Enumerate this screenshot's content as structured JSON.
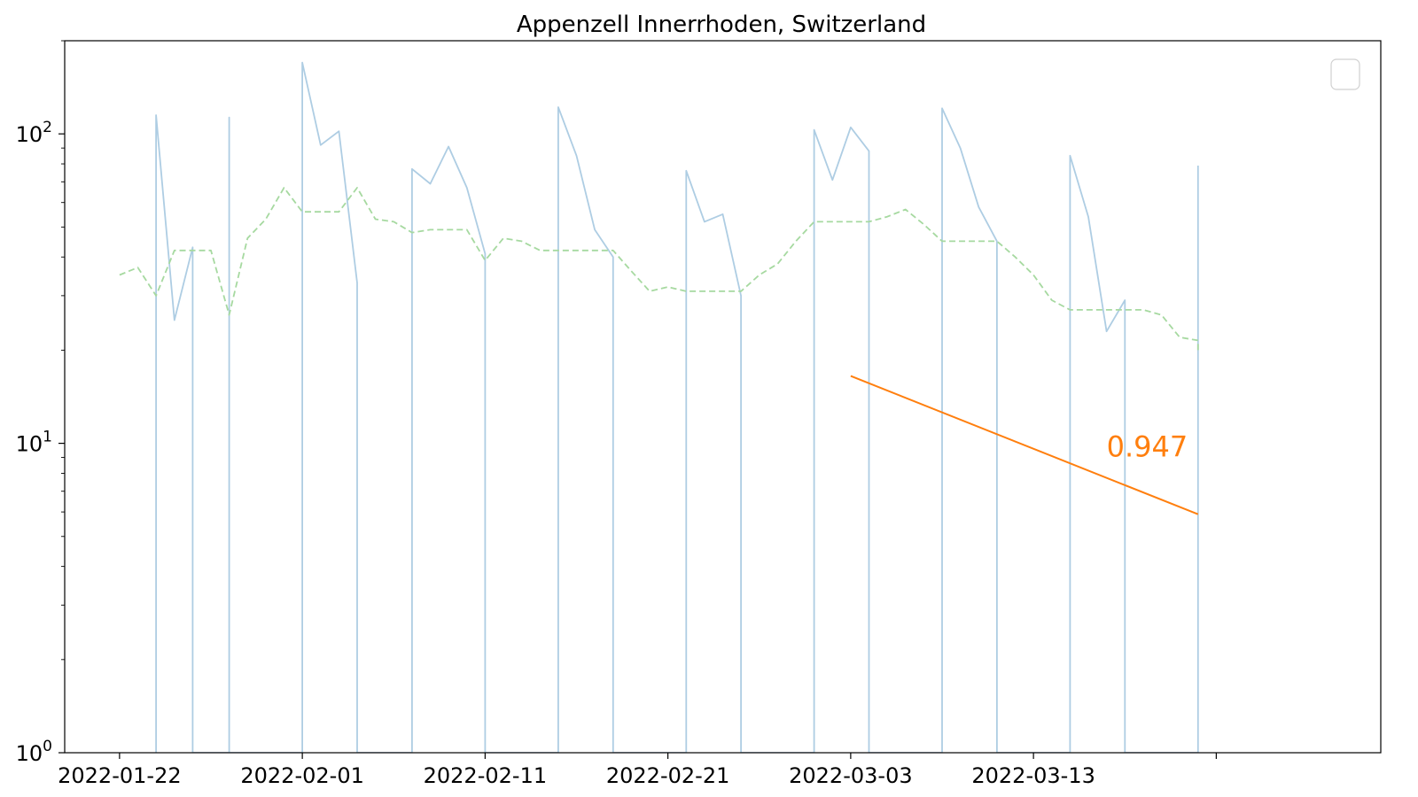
{
  "chart_data": {
    "type": "line",
    "title": "Appenzell Innerrhoden, Switzerland",
    "xlabel": "",
    "ylabel": "",
    "x_axis": "date",
    "y_scale": "log",
    "x_range": [
      "2022-01-19",
      "2022-04-01"
    ],
    "ylim": [
      1,
      200
    ],
    "x_ticks": [
      "2022-01-22",
      "2022-02-01",
      "2022-02-11",
      "2022-02-21",
      "2022-03-03",
      "2022-03-13",
      "2022-03-23"
    ],
    "x_tick_labels": [
      "2022-01-22",
      "2022-02-01",
      "2022-02-11",
      "2022-02-21",
      "2022-03-03",
      "2022-03-13",
      ""
    ],
    "y_ticks": [
      {
        "value": 1,
        "base": "10",
        "exp": "0"
      },
      {
        "value": 10,
        "base": "10",
        "exp": "1"
      },
      {
        "value": 100,
        "base": "10",
        "exp": "2"
      }
    ],
    "grid": false,
    "legend": {
      "placement": "upper right",
      "entries": []
    },
    "colors": {
      "daily": "#aecde3",
      "average": "#a6d9a0",
      "trend": "#ff7f0e"
    },
    "series": [
      {
        "key": "daily",
        "style": "solid",
        "points": [
          [
            "2022-01-24",
            0
          ],
          [
            "2022-01-24",
            115
          ],
          [
            "2022-01-25",
            25
          ],
          [
            "2022-01-26",
            43
          ],
          [
            "2022-01-26",
            0
          ],
          [
            "2022-01-28",
            0
          ],
          [
            "2022-01-28",
            113
          ],
          [
            "2022-01-28",
            0
          ],
          [
            "2022-02-01",
            0
          ],
          [
            "2022-02-01",
            170
          ],
          [
            "2022-02-02",
            92
          ],
          [
            "2022-02-03",
            102
          ],
          [
            "2022-02-04",
            33
          ],
          [
            "2022-02-04",
            0
          ],
          [
            "2022-02-07",
            0
          ],
          [
            "2022-02-07",
            77
          ],
          [
            "2022-02-08",
            69
          ],
          [
            "2022-02-09",
            91
          ],
          [
            "2022-02-10",
            67
          ],
          [
            "2022-02-11",
            41
          ],
          [
            "2022-02-11",
            0
          ],
          [
            "2022-02-15",
            0
          ],
          [
            "2022-02-15",
            122
          ],
          [
            "2022-02-16",
            85
          ],
          [
            "2022-02-17",
            49
          ],
          [
            "2022-02-18",
            40
          ],
          [
            "2022-02-18",
            0
          ],
          [
            "2022-02-22",
            0
          ],
          [
            "2022-02-22",
            76
          ],
          [
            "2022-02-23",
            52
          ],
          [
            "2022-02-24",
            55
          ],
          [
            "2022-02-25",
            30
          ],
          [
            "2022-02-25",
            0
          ],
          [
            "2022-03-01",
            0
          ],
          [
            "2022-03-01",
            103
          ],
          [
            "2022-03-02",
            71
          ],
          [
            "2022-03-03",
            105
          ],
          [
            "2022-03-04",
            88
          ],
          [
            "2022-03-04",
            0
          ],
          [
            "2022-03-08",
            0
          ],
          [
            "2022-03-08",
            121
          ],
          [
            "2022-03-09",
            90
          ],
          [
            "2022-03-10",
            58
          ],
          [
            "2022-03-11",
            45
          ],
          [
            "2022-03-11",
            0
          ],
          [
            "2022-03-15",
            0
          ],
          [
            "2022-03-15",
            85
          ],
          [
            "2022-03-16",
            54
          ],
          [
            "2022-03-17",
            23
          ],
          [
            "2022-03-18",
            29
          ],
          [
            "2022-03-18",
            0
          ],
          [
            "2022-03-22",
            0
          ],
          [
            "2022-03-22",
            79
          ]
        ]
      },
      {
        "key": "average",
        "style": "dashed",
        "points": [
          [
            "2022-01-22",
            35
          ],
          [
            "2022-01-23",
            37
          ],
          [
            "2022-01-24",
            30
          ],
          [
            "2022-01-25",
            42
          ],
          [
            "2022-01-26",
            42
          ],
          [
            "2022-01-27",
            42
          ],
          [
            "2022-01-28",
            26
          ],
          [
            "2022-01-29",
            46
          ],
          [
            "2022-01-30",
            53
          ],
          [
            "2022-01-31",
            67
          ],
          [
            "2022-02-01",
            56
          ],
          [
            "2022-02-02",
            56
          ],
          [
            "2022-02-03",
            56
          ],
          [
            "2022-02-04",
            67
          ],
          [
            "2022-02-05",
            53
          ],
          [
            "2022-02-06",
            52
          ],
          [
            "2022-02-07",
            48
          ],
          [
            "2022-02-08",
            49
          ],
          [
            "2022-02-09",
            49
          ],
          [
            "2022-02-10",
            49
          ],
          [
            "2022-02-11",
            39
          ],
          [
            "2022-02-12",
            46
          ],
          [
            "2022-02-13",
            45
          ],
          [
            "2022-02-14",
            42
          ],
          [
            "2022-02-15",
            42
          ],
          [
            "2022-02-16",
            42
          ],
          [
            "2022-02-17",
            42
          ],
          [
            "2022-02-18",
            42
          ],
          [
            "2022-02-19",
            36
          ],
          [
            "2022-02-20",
            31
          ],
          [
            "2022-02-21",
            32
          ],
          [
            "2022-02-22",
            31
          ],
          [
            "2022-02-23",
            31
          ],
          [
            "2022-02-24",
            31
          ],
          [
            "2022-02-25",
            31
          ],
          [
            "2022-02-26",
            35
          ],
          [
            "2022-02-27",
            38
          ],
          [
            "2022-02-28",
            45
          ],
          [
            "2022-03-01",
            52
          ],
          [
            "2022-03-02",
            52
          ],
          [
            "2022-03-03",
            52
          ],
          [
            "2022-03-04",
            52
          ],
          [
            "2022-03-05",
            54
          ],
          [
            "2022-03-06",
            57
          ],
          [
            "2022-03-07",
            51
          ],
          [
            "2022-03-08",
            45
          ],
          [
            "2022-03-09",
            45
          ],
          [
            "2022-03-10",
            45
          ],
          [
            "2022-03-11",
            45
          ],
          [
            "2022-03-12",
            40
          ],
          [
            "2022-03-13",
            35
          ],
          [
            "2022-03-14",
            29
          ],
          [
            "2022-03-15",
            27
          ],
          [
            "2022-03-16",
            27
          ],
          [
            "2022-03-17",
            27
          ],
          [
            "2022-03-18",
            27
          ],
          [
            "2022-03-19",
            27
          ],
          [
            "2022-03-20",
            26
          ],
          [
            "2022-03-21",
            22
          ],
          [
            "2022-03-22",
            21.5
          ],
          [
            "2022-03-22",
            20
          ]
        ]
      },
      {
        "key": "trend",
        "style": "solid",
        "points": [
          [
            "2022-03-03",
            16.5
          ],
          [
            "2022-03-22",
            5.9
          ]
        ]
      }
    ],
    "annotations": [
      {
        "text": "0.947",
        "x": "2022-03-17",
        "y": 9.8,
        "color": "#ff7f0e"
      }
    ]
  }
}
